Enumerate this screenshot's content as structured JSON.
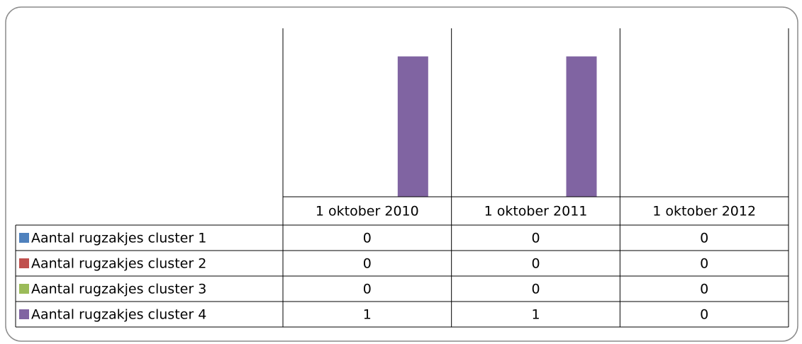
{
  "chart_data": {
    "type": "bar",
    "categories": [
      "1 oktober 2010",
      "1 oktober 2011",
      "1 oktober 2012"
    ],
    "series": [
      {
        "name": "Aantal rugzakjes cluster 1",
        "color": "#4f81bd",
        "values": [
          0,
          0,
          0
        ]
      },
      {
        "name": "Aantal rugzakjes cluster 2",
        "color": "#c0504d",
        "values": [
          0,
          0,
          0
        ]
      },
      {
        "name": "Aantal rugzakjes cluster 3",
        "color": "#9bbb59",
        "values": [
          0,
          0,
          0
        ]
      },
      {
        "name": "Aantal rugzakjes cluster 4",
        "color": "#8064a2",
        "values": [
          1,
          1,
          0
        ]
      }
    ],
    "ylim": [
      0,
      1.2
    ]
  }
}
